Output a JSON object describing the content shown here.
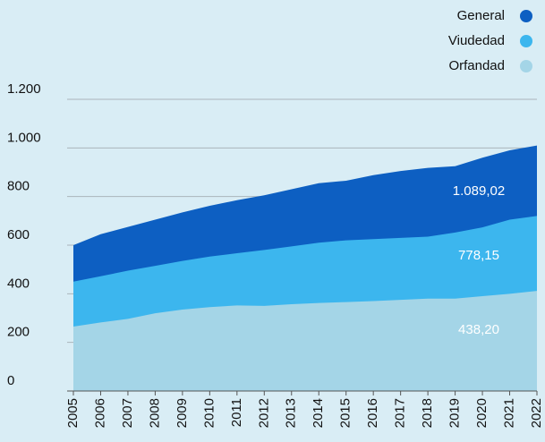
{
  "chart_data": {
    "type": "area",
    "categories": [
      "2005",
      "2006",
      "2007",
      "2008",
      "2009",
      "2010",
      "2011",
      "2012",
      "2013",
      "2014",
      "2015",
      "2016",
      "2017",
      "2018",
      "2019",
      "2020",
      "2021",
      "2022"
    ],
    "series": [
      {
        "name": "General",
        "color": "#0d5fc2",
        "values": [
          600,
          645,
          675,
          705,
          735,
          762,
          785,
          805,
          830,
          855,
          865,
          888,
          905,
          918,
          925,
          960,
          990,
          1010
        ]
      },
      {
        "name": "Viudedad",
        "color": "#3cb6ee",
        "values": [
          450,
          472,
          495,
          515,
          535,
          553,
          567,
          580,
          595,
          610,
          620,
          625,
          630,
          635,
          652,
          673,
          705,
          720
        ]
      },
      {
        "name": "Orfandad",
        "color": "#a4d5e7",
        "values": [
          265,
          282,
          297,
          320,
          335,
          345,
          352,
          350,
          357,
          362,
          366,
          370,
          375,
          380,
          380,
          390,
          400,
          412
        ]
      }
    ],
    "annotations": [
      "1.089,02",
      "778,15",
      "438,20"
    ],
    "ylim": [
      0,
      1200
    ],
    "yticks": [
      0,
      200,
      400,
      600,
      800,
      {
        "value": 1000,
        "label": "1.000"
      },
      {
        "value": 1200,
        "label": "1.200"
      }
    ],
    "grid": true,
    "legend": "top-right"
  }
}
